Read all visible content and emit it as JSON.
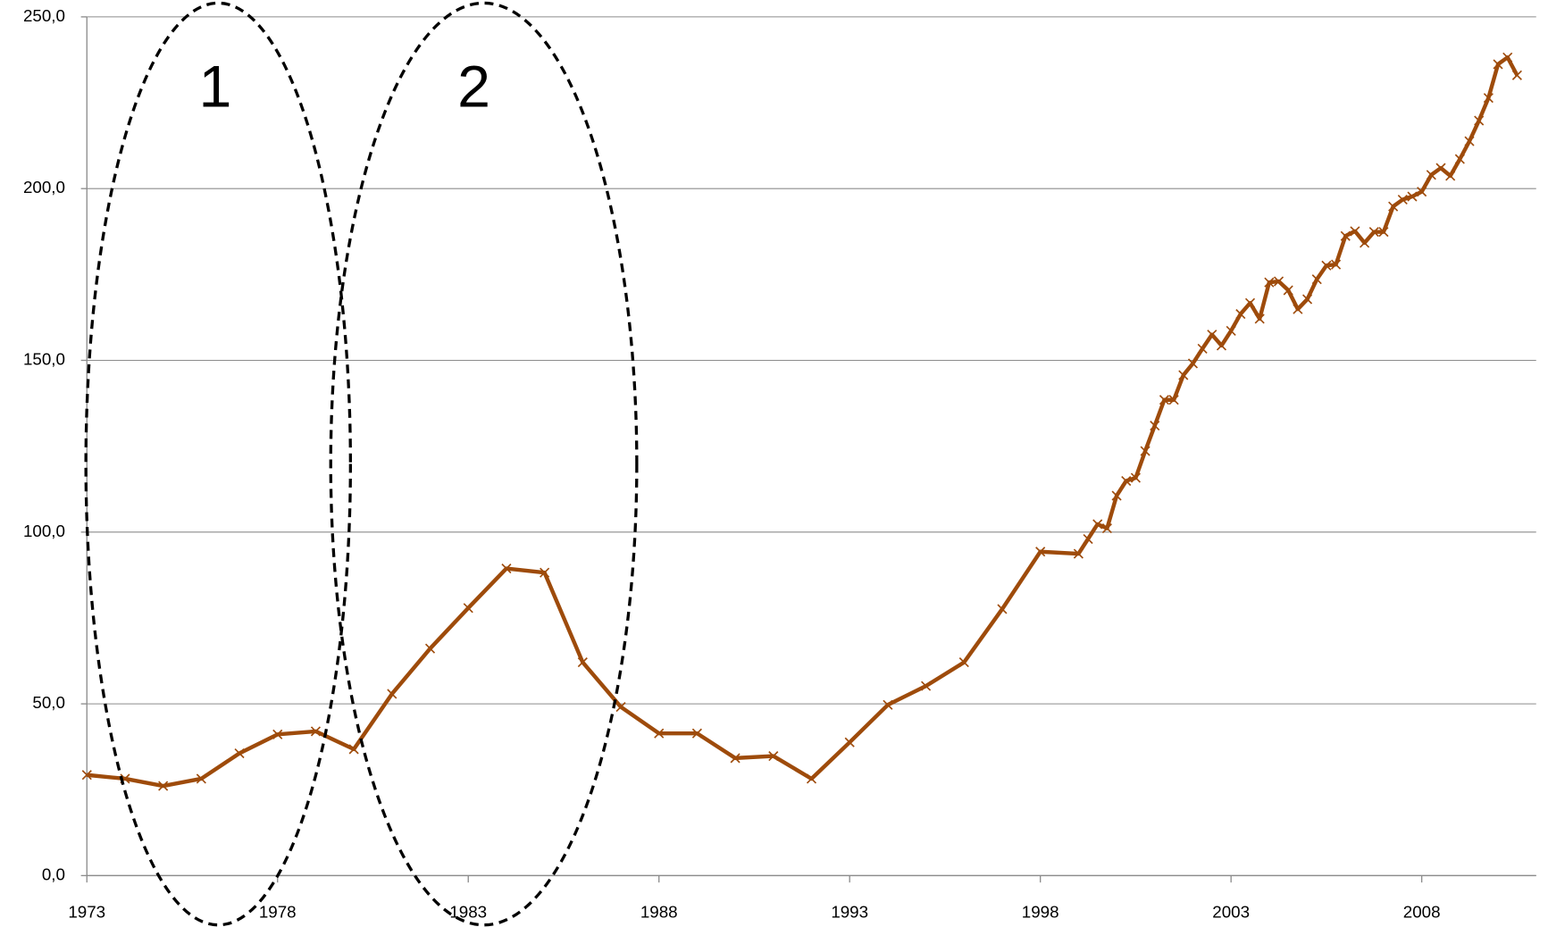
{
  "chart_data": {
    "type": "line",
    "x": [
      1973,
      1974,
      1975,
      1976,
      1977,
      1978,
      1979,
      1980,
      1981,
      1982,
      1983,
      1984,
      1985,
      1986,
      1987,
      1988,
      1989,
      1990,
      1991,
      1992,
      1993,
      1994,
      1995,
      1996,
      1997,
      1998,
      1999,
      1999.25,
      1999.5,
      1999.75,
      2000,
      2000.25,
      2000.5,
      2000.75,
      2001,
      2001.25,
      2001.5,
      2001.75,
      2002,
      2002.25,
      2002.5,
      2002.75,
      2003,
      2003.25,
      2003.5,
      2003.75,
      2004,
      2004.25,
      2004.5,
      2004.75,
      2005,
      2005.25,
      2005.5,
      2005.75,
      2006,
      2006.25,
      2006.5,
      2006.75,
      2007,
      2007.25,
      2007.5,
      2007.75,
      2008,
      2008.25,
      2008.5,
      2008.75,
      2009,
      2009.25,
      2009.5,
      2009.75,
      2010,
      2010.25,
      2010.5
    ],
    "series": [
      {
        "color": "#9e4b0b",
        "values": [
          29.3,
          28.2,
          26.1,
          28.2,
          35.6,
          41.1,
          42.0,
          36.8,
          52.9,
          66.1,
          77.9,
          89.4,
          88.2,
          62.1,
          49.1,
          41.4,
          41.4,
          34.2,
          34.8,
          28.2,
          38.8,
          49.7,
          55.2,
          62.1,
          77.6,
          94.3,
          93.7,
          98.0,
          102.3,
          101.1,
          110.6,
          114.9,
          115.8,
          123.6,
          131.0,
          138.5,
          138.5,
          145.7,
          149.1,
          153.4,
          157.5,
          154.3,
          158.6,
          163.5,
          166.7,
          162.1,
          172.7,
          173.0,
          170.4,
          164.9,
          167.8,
          173.6,
          177.6,
          177.9,
          186.2,
          187.6,
          184.2,
          187.4,
          187.4,
          194.8,
          196.8,
          197.7,
          199.1,
          204.0,
          206.0,
          203.7,
          208.6,
          213.8,
          219.8,
          226.4,
          236.2,
          238.2,
          233.0
        ]
      }
    ],
    "xlim": [
      1973,
      2011
    ],
    "xticks": [
      1973,
      1978,
      1983,
      1988,
      1993,
      1998,
      2003,
      2008
    ],
    "ylim": [
      0,
      250
    ],
    "yticks": [
      {
        "value": 0,
        "label": "0,0"
      },
      {
        "value": 50,
        "label": "50,0"
      },
      {
        "value": 100,
        "label": "100,0"
      },
      {
        "value": 150,
        "label": "150,0"
      },
      {
        "value": 200,
        "label": "200,0"
      },
      {
        "value": 250,
        "label": "250,0"
      }
    ],
    "grid": true,
    "annotations": [
      "1",
      "2"
    ]
  }
}
